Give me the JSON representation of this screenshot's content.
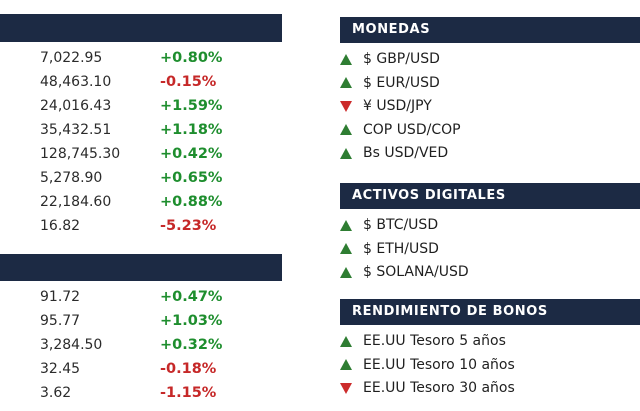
{
  "colors": {
    "header_bar": "#1c2a44",
    "up_green_text": "#1e8e2e",
    "up_green_triangle": "#2e7d32",
    "down_red_text": "#c62828",
    "down_red_triangle": "#cc2b2b",
    "value_text": "#2b2b2b"
  },
  "left_panel": {
    "sections": [
      {
        "title": "",
        "rows": [
          {
            "value": "7,022.95",
            "change": "+0.80%",
            "direction": "up"
          },
          {
            "value": "48,463.10",
            "change": "-0.15%",
            "direction": "down"
          },
          {
            "value": "24,016.43",
            "change": "+1.59%",
            "direction": "up"
          },
          {
            "value": "35,432.51",
            "change": "+1.18%",
            "direction": "up"
          },
          {
            "value": "128,745.30",
            "change": "+0.42%",
            "direction": "up"
          },
          {
            "value": "5,278.90",
            "change": "+0.65%",
            "direction": "up"
          },
          {
            "value": "22,184.60",
            "change": "+0.88%",
            "direction": "up"
          },
          {
            "value": "16.82",
            "change": "-5.23%",
            "direction": "down"
          }
        ]
      },
      {
        "title": "",
        "rows": [
          {
            "value": "91.72",
            "change": "+0.47%",
            "direction": "up"
          },
          {
            "value": "95.77",
            "change": "+1.03%",
            "direction": "up"
          },
          {
            "value": "3,284.50",
            "change": "+0.32%",
            "direction": "up"
          },
          {
            "value": "32.45",
            "change": "-0.18%",
            "direction": "down"
          },
          {
            "value": "3.62",
            "change": "-1.15%",
            "direction": "down"
          }
        ]
      }
    ]
  },
  "right_panel": {
    "sections": [
      {
        "title": "MONEDAS",
        "items": [
          {
            "direction": "up",
            "label": "$ GBP/USD"
          },
          {
            "direction": "up",
            "label": "$ EUR/USD"
          },
          {
            "direction": "down",
            "label": "¥ USD/JPY"
          },
          {
            "direction": "up",
            "label": "COP USD/COP"
          },
          {
            "direction": "up",
            "label": "Bs USD/VED"
          }
        ]
      },
      {
        "title": "ACTIVOS DIGITALES",
        "items": [
          {
            "direction": "up",
            "label": "$ BTC/USD"
          },
          {
            "direction": "up",
            "label": "$ ETH/USD"
          },
          {
            "direction": "up",
            "label": "$ SOLANA/USD"
          }
        ]
      },
      {
        "title": "RENDIMIENTO DE BONOS",
        "items": [
          {
            "direction": "up",
            "label": "EE.UU Tesoro 5 años"
          },
          {
            "direction": "up",
            "label": "EE.UU Tesoro 10 años"
          },
          {
            "direction": "down",
            "label": "EE.UU Tesoro 30 años"
          }
        ]
      }
    ]
  }
}
